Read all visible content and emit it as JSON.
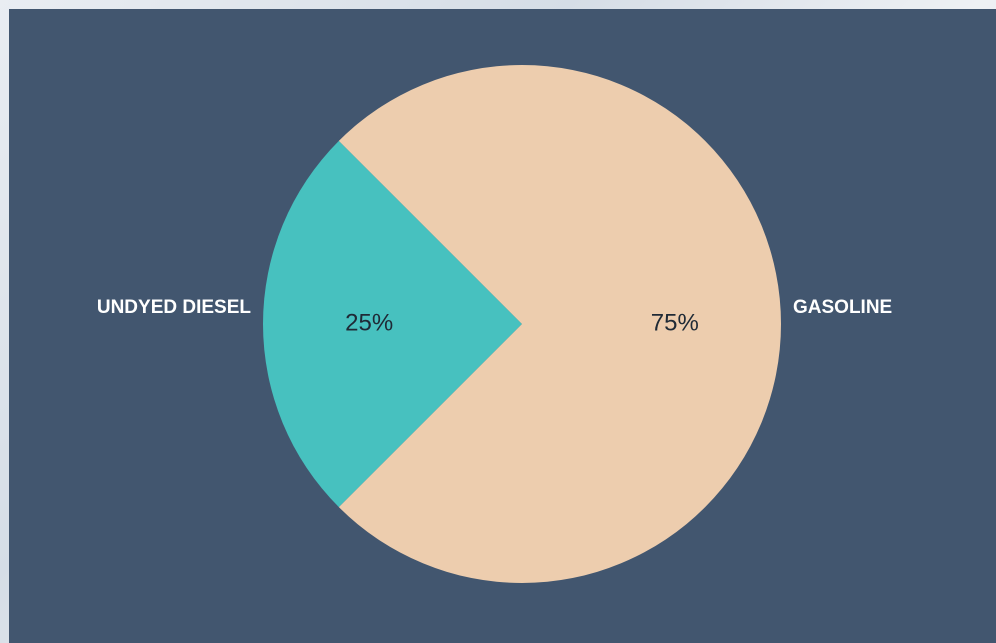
{
  "chart_data": {
    "type": "pie",
    "categories": [
      "UNDYED DIESEL",
      "GASOLINE"
    ],
    "values": [
      25,
      75
    ],
    "value_labels": [
      "25%",
      "75%"
    ],
    "colors": [
      "#47c1bf",
      "#edcdae"
    ],
    "start_angle_deg": 135,
    "background_color": "#42566f",
    "label_color": "#ffffff",
    "value_label_color": "#1f2a36"
  }
}
